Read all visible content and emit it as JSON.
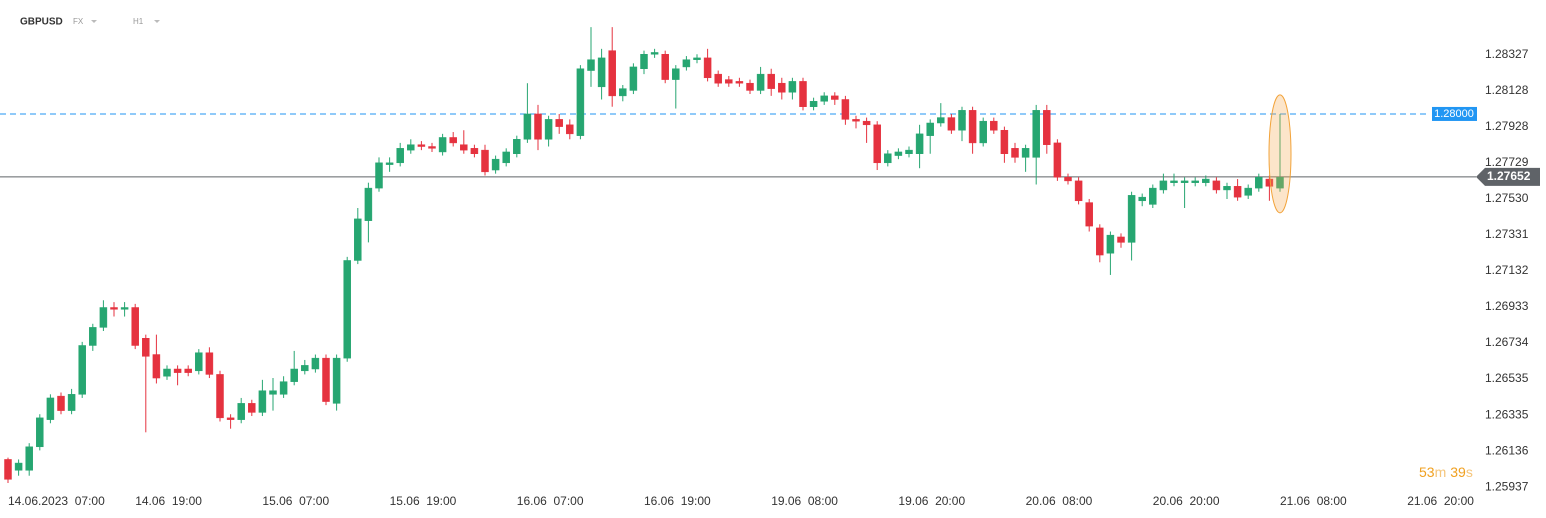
{
  "chart_data": {
    "type": "candlestick",
    "symbol": "GBPUSD",
    "market": "FX",
    "interval": "H1",
    "ylim": [
      1.2591,
      1.2863
    ],
    "yticks": [
      1.28327,
      1.28128,
      1.27928,
      1.27729,
      {
        "value": 1.2753,
        "label": "1.27530"
      },
      1.27331,
      1.27132,
      1.26933,
      1.26734,
      1.26535,
      1.26335,
      1.26136,
      1.25937
    ],
    "xlabels": [
      "14.06.2023  07:00",
      "14.06  19:00",
      "15.06  07:00",
      "15.06  19:00",
      "16.06  07:00",
      "16.06  19:00",
      "19.06  08:00",
      "19.06  20:00",
      "20.06  08:00",
      "20.06  20:00",
      "21.06  08:00",
      "21.06  20:00"
    ],
    "up_color": "#26a671",
    "down_color": "#e5323f",
    "level_line": {
      "value": 1.28,
      "label": "1.28000",
      "color": "#2196f3"
    },
    "last_price": {
      "value": 1.27652,
      "color": "#5f6368"
    },
    "countdown": {
      "minutes": "53",
      "m": "m",
      "seconds": "39",
      "s": "s"
    },
    "ohlc": [
      [
        1.2609,
        1.261,
        1.2596,
        1.2598
      ],
      [
        1.2603,
        1.2609,
        1.26,
        1.2607
      ],
      [
        1.2603,
        1.2618,
        1.26,
        1.2616
      ],
      [
        1.2616,
        1.2634,
        1.2614,
        1.2632
      ],
      [
        1.2631,
        1.2645,
        1.2629,
        1.2643
      ],
      [
        1.2644,
        1.2646,
        1.2634,
        1.2636
      ],
      [
        1.2636,
        1.2648,
        1.2634,
        1.2645
      ],
      [
        1.2645,
        1.2674,
        1.2643,
        1.2672
      ],
      [
        1.2672,
        1.2684,
        1.2669,
        1.2682
      ],
      [
        1.2682,
        1.2697,
        1.268,
        1.2693
      ],
      [
        1.2693,
        1.2696,
        1.2688,
        1.2692
      ],
      [
        1.2692,
        1.2696,
        1.2688,
        1.2693
      ],
      [
        1.2693,
        1.2695,
        1.267,
        1.2672
      ],
      [
        1.2676,
        1.2678,
        1.2624,
        1.2666
      ],
      [
        1.2667,
        1.2678,
        1.2651,
        1.2654
      ],
      [
        1.2655,
        1.2661,
        1.2653,
        1.2659
      ],
      [
        1.2659,
        1.2661,
        1.265,
        1.2657
      ],
      [
        1.2659,
        1.2661,
        1.2655,
        1.2657
      ],
      [
        1.2658,
        1.267,
        1.2656,
        1.2668
      ],
      [
        1.2668,
        1.2671,
        1.2654,
        1.2656
      ],
      [
        1.2656,
        1.2658,
        1.263,
        1.2632
      ],
      [
        1.2632,
        1.2634,
        1.2626,
        1.2631
      ],
      [
        1.2631,
        1.2643,
        1.2629,
        1.264
      ],
      [
        1.264,
        1.2642,
        1.2633,
        1.2635
      ],
      [
        1.2635,
        1.2653,
        1.2633,
        1.2647
      ],
      [
        1.2645,
        1.2654,
        1.2636,
        1.2647
      ],
      [
        1.2645,
        1.2655,
        1.2643,
        1.2652
      ],
      [
        1.2652,
        1.2669,
        1.265,
        1.2659
      ],
      [
        1.2658,
        1.2664,
        1.2656,
        1.2661
      ],
      [
        1.2659,
        1.2667,
        1.2657,
        1.2665
      ],
      [
        1.2665,
        1.2667,
        1.2639,
        1.2641
      ],
      [
        1.264,
        1.2667,
        1.2636,
        1.2665
      ],
      [
        1.2665,
        1.2721,
        1.2663,
        1.2719
      ],
      [
        1.2719,
        1.2748,
        1.2717,
        1.2742
      ],
      [
        1.2741,
        1.2762,
        1.2729,
        1.2759
      ],
      [
        1.2759,
        1.2776,
        1.2757,
        1.2773
      ],
      [
        1.2772,
        1.2776,
        1.2768,
        1.2773
      ],
      [
        1.2773,
        1.2784,
        1.2771,
        1.2781
      ],
      [
        1.278,
        1.2786,
        1.2778,
        1.2783
      ],
      [
        1.2783,
        1.2785,
        1.278,
        1.2782
      ],
      [
        1.2782,
        1.2784,
        1.2779,
        1.2781
      ],
      [
        1.2779,
        1.2789,
        1.2777,
        1.2787
      ],
      [
        1.2787,
        1.279,
        1.2782,
        1.2784
      ],
      [
        1.2783,
        1.2791,
        1.2778,
        1.278
      ],
      [
        1.2781,
        1.2783,
        1.2776,
        1.2778
      ],
      [
        1.278,
        1.2783,
        1.2766,
        1.2768
      ],
      [
        1.2769,
        1.2777,
        1.2767,
        1.2775
      ],
      [
        1.2773,
        1.2781,
        1.2771,
        1.2779
      ],
      [
        1.2778,
        1.2788,
        1.2776,
        1.2786
      ],
      [
        1.2786,
        1.2817,
        1.2784,
        1.28
      ],
      [
        1.28,
        1.2805,
        1.278,
        1.2786
      ],
      [
        1.2786,
        1.2799,
        1.2782,
        1.2797
      ],
      [
        1.2797,
        1.28,
        1.2789,
        1.2793
      ],
      [
        1.2794,
        1.2797,
        1.2786,
        1.2789
      ],
      [
        1.2788,
        1.2827,
        1.2786,
        1.2825
      ],
      [
        1.2824,
        1.2848,
        1.2815,
        1.283
      ],
      [
        1.2815,
        1.2836,
        1.2808,
        1.2831
      ],
      [
        1.2835,
        1.2848,
        1.2804,
        1.281
      ],
      [
        1.281,
        1.2816,
        1.2807,
        1.2814
      ],
      [
        1.2813,
        1.2828,
        1.2811,
        1.2826
      ],
      [
        1.2825,
        1.2835,
        1.2822,
        1.2833
      ],
      [
        1.2833,
        1.2836,
        1.2831,
        1.2834
      ],
      [
        1.2833,
        1.2835,
        1.2817,
        1.2819
      ],
      [
        1.2819,
        1.2827,
        1.2803,
        1.2825
      ],
      [
        1.2826,
        1.2832,
        1.2824,
        1.283
      ],
      [
        1.283,
        1.2833,
        1.2828,
        1.2831
      ],
      [
        1.2831,
        1.2836,
        1.2818,
        1.282
      ],
      [
        1.2822,
        1.2824,
        1.2815,
        1.2817
      ],
      [
        1.2819,
        1.2821,
        1.2815,
        1.2817
      ],
      [
        1.2818,
        1.282,
        1.2815,
        1.2817
      ],
      [
        1.2817,
        1.2819,
        1.2811,
        1.2813
      ],
      [
        1.2813,
        1.2826,
        1.2811,
        1.2822
      ],
      [
        1.2822,
        1.2825,
        1.281,
        1.2814
      ],
      [
        1.2817,
        1.282,
        1.2808,
        1.2812
      ],
      [
        1.2812,
        1.282,
        1.2808,
        1.2818
      ],
      [
        1.2818,
        1.282,
        1.2802,
        1.2804
      ],
      [
        1.2804,
        1.2809,
        1.2802,
        1.2807
      ],
      [
        1.2807,
        1.2812,
        1.2805,
        1.281
      ],
      [
        1.281,
        1.2812,
        1.2805,
        1.2808
      ],
      [
        1.2808,
        1.281,
        1.2794,
        1.2797
      ],
      [
        1.2797,
        1.2799,
        1.2792,
        1.2796
      ],
      [
        1.2796,
        1.2798,
        1.2784,
        1.2794
      ],
      [
        1.2794,
        1.2796,
        1.2769,
        1.2773
      ],
      [
        1.2773,
        1.278,
        1.2771,
        1.2778
      ],
      [
        1.2777,
        1.2781,
        1.2775,
        1.2779
      ],
      [
        1.2778,
        1.2782,
        1.2776,
        1.278
      ],
      [
        1.2778,
        1.2794,
        1.277,
        1.2789
      ],
      [
        1.2788,
        1.2797,
        1.2778,
        1.2795
      ],
      [
        1.2795,
        1.2806,
        1.2793,
        1.2798
      ],
      [
        1.2798,
        1.28,
        1.2789,
        1.2791
      ],
      [
        1.2791,
        1.2804,
        1.2785,
        1.2802
      ],
      [
        1.2802,
        1.2804,
        1.2778,
        1.2784
      ],
      [
        1.2784,
        1.2798,
        1.2782,
        1.2796
      ],
      [
        1.2796,
        1.2798,
        1.2789,
        1.2791
      ],
      [
        1.2791,
        1.2793,
        1.2773,
        1.2778
      ],
      [
        1.2781,
        1.2784,
        1.2773,
        1.2776
      ],
      [
        1.2776,
        1.2783,
        1.2768,
        1.2781
      ],
      [
        1.2776,
        1.2805,
        1.2761,
        1.2802
      ],
      [
        1.2802,
        1.2805,
        1.2778,
        1.2783
      ],
      [
        1.2784,
        1.2786,
        1.2763,
        1.2765
      ],
      [
        1.2765,
        1.2767,
        1.2761,
        1.2763
      ],
      [
        1.2763,
        1.2765,
        1.275,
        1.2752
      ],
      [
        1.2751,
        1.2753,
        1.2735,
        1.2738
      ],
      [
        1.2737,
        1.2739,
        1.2718,
        1.2722
      ],
      [
        1.2723,
        1.2735,
        1.2711,
        1.2733
      ],
      [
        1.2732,
        1.2734,
        1.2726,
        1.2729
      ],
      [
        1.2729,
        1.2757,
        1.2719,
        1.2755
      ],
      [
        1.2752,
        1.2756,
        1.2749,
        1.2754
      ],
      [
        1.275,
        1.2761,
        1.2748,
        1.2759
      ],
      [
        1.2758,
        1.2767,
        1.2756,
        1.2763
      ],
      [
        1.2762,
        1.2767,
        1.276,
        1.2763
      ],
      [
        1.2762,
        1.2765,
        1.2748,
        1.2763
      ],
      [
        1.2762,
        1.2765,
        1.276,
        1.2763
      ],
      [
        1.2762,
        1.2766,
        1.276,
        1.2764
      ],
      [
        1.2763,
        1.2765,
        1.2756,
        1.2758
      ],
      [
        1.2758,
        1.2762,
        1.2753,
        1.276
      ],
      [
        1.276,
        1.2764,
        1.2752,
        1.2754
      ],
      [
        1.2755,
        1.2761,
        1.2753,
        1.2759
      ],
      [
        1.2759,
        1.2767,
        1.2757,
        1.2765
      ],
      [
        1.2764,
        1.2766,
        1.2752,
        1.276
      ],
      [
        1.2759,
        1.28,
        1.2757,
        1.2765
      ]
    ]
  }
}
